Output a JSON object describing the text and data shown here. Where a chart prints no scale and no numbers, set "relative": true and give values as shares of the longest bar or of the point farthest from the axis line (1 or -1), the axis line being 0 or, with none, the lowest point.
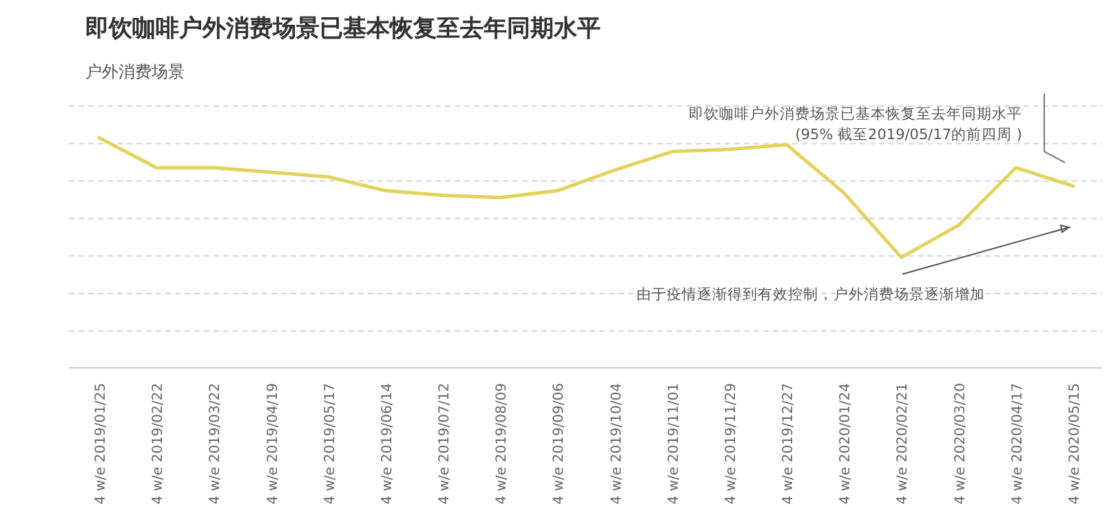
{
  "chart_data": {
    "type": "line",
    "relative": true,
    "title": "即饮咖啡户外消费场景已基本恢复至去年同期水平",
    "subtitle": "户外消费场景",
    "categories": [
      "4 w/e 2019/01/25",
      "4 w/e 2019/02/22",
      "4 w/e 2019/03/22",
      "4 w/e 2019/04/19",
      "4 w/e 2019/05/17",
      "4 w/e 2019/06/14",
      "4 w/e 2019/07/12",
      "4 w/e 2019/08/09",
      "4 w/e 2019/09/06",
      "4 w/e 2019/10/04",
      "4 w/e 2019/11/01",
      "4 w/e 2019/11/29",
      "4 w/e 2019/12/27",
      "4 w/e 2020/01/24",
      "4 w/e 2020/02/21",
      "4 w/e 2020/03/20",
      "4 w/e 2020/04/17",
      "4 w/e 2020/05/15"
    ],
    "values": [
      1,
      0.87,
      0.87,
      0.85,
      0.83,
      0.77,
      0.75,
      0.74,
      0.77,
      0.86,
      0.94,
      0.95,
      0.97,
      0.76,
      0.48,
      0.62,
      0.87,
      0.79
    ],
    "color": "#e2d35c",
    "grid": true,
    "annotations": [
      "即饮咖啡户外消费场景已基本恢复至去年同期水平\n(95% 截至2019/05/17的前四周 )",
      "由于疫情逐渐得到有效控制，户外消费场景逐渐增加"
    ]
  }
}
